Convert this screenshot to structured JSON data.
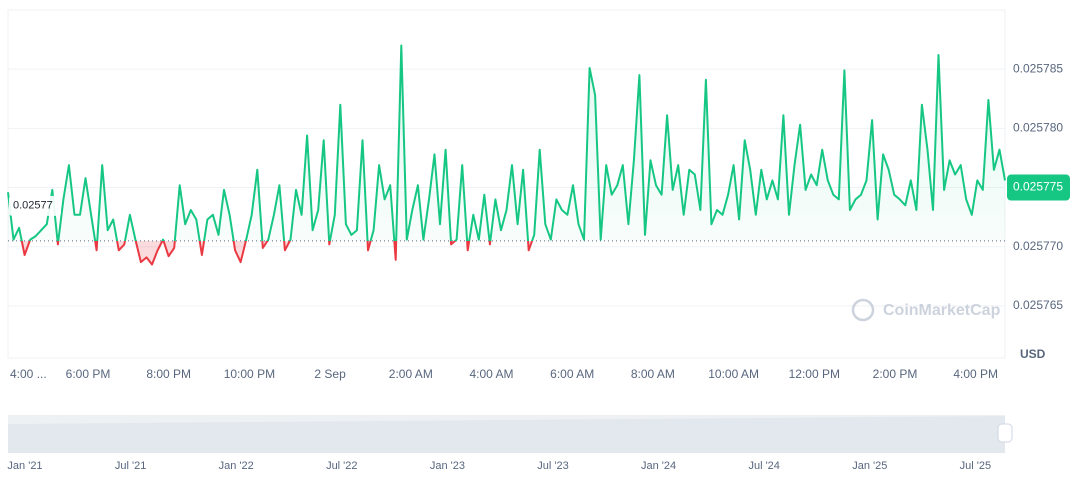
{
  "chart_data": {
    "type": "line",
    "currency": "USD",
    "watermark": "CoinMarketCap",
    "color": "#16c784",
    "down_color": "#ea3943",
    "ylim": [
      0.0257606,
      0.02579
    ],
    "yticks": [
      0.025765,
      {
        "value": 0.02577,
        "label": "0.025770"
      },
      0.025775,
      {
        "value": 0.02578,
        "label": "0.025780"
      },
      0.025785
    ],
    "baseline": {
      "value": 0.0257705,
      "label": "0.02577"
    },
    "current_price": 0.025775,
    "x_tick_labels": [
      "4:00 ...",
      "6:00 PM",
      "8:00 PM",
      "10:00 PM",
      "2 Sep",
      "2:00 AM",
      "4:00 AM",
      "6:00 AM",
      "8:00 AM",
      "10:00 AM",
      "12:00 PM",
      "2:00 PM",
      "4:00 PM"
    ],
    "navigator_labels": [
      "Jan '21",
      "Jul '21",
      "Jan '22",
      "Jul '22",
      "Jan '23",
      "Jul '23",
      "Jan '24",
      "Jul '24",
      "Jan '25",
      "Jul '25"
    ],
    "values": [
      0.0257746,
      0.0257706,
      0.0257716,
      0.0257693,
      0.0257706,
      0.0257709,
      0.0257714,
      0.0257719,
      0.0257748,
      0.0257702,
      0.025774,
      0.0257769,
      0.0257727,
      0.0257727,
      0.0257758,
      0.0257727,
      0.0257697,
      0.0257769,
      0.0257714,
      0.0257723,
      0.0257697,
      0.0257702,
      0.0257727,
      0.0257706,
      0.0257687,
      0.0257691,
      0.0257685,
      0.0257697,
      0.0257706,
      0.0257692,
      0.0257699,
      0.0257752,
      0.0257719,
      0.0257731,
      0.0257723,
      0.0257693,
      0.0257723,
      0.0257727,
      0.025771,
      0.0257748,
      0.0257727,
      0.0257697,
      0.0257687,
      0.0257706,
      0.0257727,
      0.0257765,
      0.0257699,
      0.0257706,
      0.0257727,
      0.0257752,
      0.0257697,
      0.0257706,
      0.0257748,
      0.0257727,
      0.0257794,
      0.0257714,
      0.0257731,
      0.025779,
      0.0257702,
      0.0257727,
      0.025782,
      0.0257719,
      0.025771,
      0.0257714,
      0.025779,
      0.0257697,
      0.0257714,
      0.0257769,
      0.025774,
      0.0257752,
      0.0257689,
      0.025787,
      0.0257706,
      0.0257731,
      0.0257752,
      0.0257706,
      0.025774,
      0.0257778,
      0.0257719,
      0.0257782,
      0.0257702,
      0.0257706,
      0.0257769,
      0.0257697,
      0.0257727,
      0.0257706,
      0.0257744,
      0.0257702,
      0.025774,
      0.0257714,
      0.0257731,
      0.0257769,
      0.0257719,
      0.0257765,
      0.0257697,
      0.025771,
      0.0257782,
      0.0257719,
      0.0257706,
      0.025774,
      0.0257731,
      0.0257727,
      0.0257752,
      0.0257719,
      0.0257706,
      0.0257851,
      0.0257828,
      0.0257706,
      0.0257769,
      0.0257744,
      0.0257752,
      0.0257769,
      0.0257719,
      0.0257773,
      0.0257845,
      0.025771,
      0.0257773,
      0.0257752,
      0.0257744,
      0.0257811,
      0.0257748,
      0.0257769,
      0.0257727,
      0.0257765,
      0.0257761,
      0.0257731,
      0.0257841,
      0.0257719,
      0.0257731,
      0.0257727,
      0.0257744,
      0.0257769,
      0.0257723,
      0.025779,
      0.0257765,
      0.0257727,
      0.0257765,
      0.025774,
      0.0257756,
      0.025774,
      0.0257811,
      0.0257727,
      0.0257769,
      0.0257803,
      0.0257748,
      0.0257761,
      0.0257752,
      0.0257782,
      0.0257756,
      0.0257744,
      0.025774,
      0.0257849,
      0.0257731,
      0.025774,
      0.0257744,
      0.0257756,
      0.0257807,
      0.0257723,
      0.0257778,
      0.0257765,
      0.0257744,
      0.025774,
      0.0257735,
      0.0257756,
      0.0257731,
      0.025782,
      0.0257782,
      0.0257731,
      0.0257862,
      0.0257748,
      0.0257773,
      0.0257761,
      0.0257769,
      0.025774,
      0.0257727,
      0.0257756,
      0.0257748,
      0.0257824,
      0.0257765,
      0.0257782,
      0.0257756
    ]
  }
}
